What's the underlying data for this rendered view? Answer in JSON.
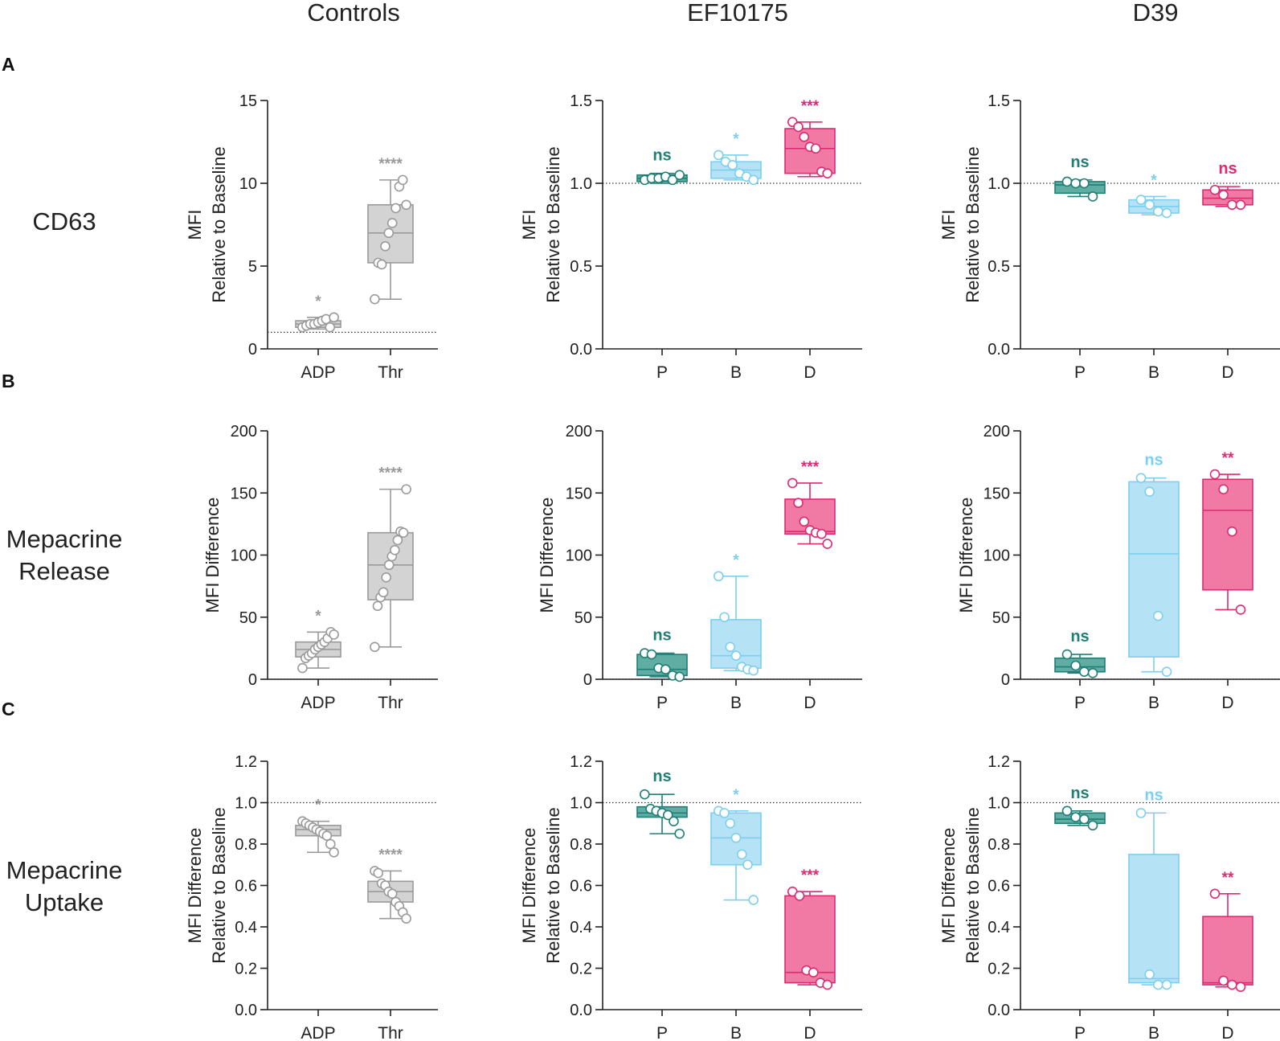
{
  "column_headers": [
    "Controls",
    "EF10175",
    "D39"
  ],
  "row_labels": [
    {
      "letter": "A",
      "lines": [
        "CD63"
      ]
    },
    {
      "letter": "B",
      "lines": [
        "Mepacrine",
        "Release"
      ]
    },
    {
      "letter": "C",
      "lines": [
        "Mepacrine",
        "Uptake"
      ]
    }
  ],
  "colors": {
    "grey_fill": "#d3d3d3",
    "grey_line": "#9a9a9a",
    "teal_fill": "#5fada3",
    "teal_line": "#1f7f75",
    "blue_fill": "#b6e2f6",
    "blue_line": "#7ccfee",
    "pink_fill": "#f07aa3",
    "pink_line": "#dd2a74"
  },
  "chart_data": [
    {
      "type": "box",
      "row": "A",
      "column": "Controls",
      "ylabel": [
        "MFI",
        "Relative to Baseline"
      ],
      "ylim": [
        0,
        15
      ],
      "yticks": [
        0,
        5,
        10,
        15
      ],
      "reference_line": 1,
      "categories": [
        "ADP",
        "Thr"
      ],
      "boxes": [
        {
          "category": "ADP",
          "color": "grey",
          "min": 1.2,
          "q1": 1.3,
          "median": 1.5,
          "q3": 1.7,
          "max": 1.9,
          "points": [
            1.3,
            1.4,
            1.5,
            1.5,
            1.6,
            1.7,
            1.8,
            1.3,
            1.9
          ],
          "significance": "*"
        },
        {
          "category": "Thr",
          "color": "grey",
          "min": 3.0,
          "q1": 5.2,
          "median": 7.0,
          "q3": 8.7,
          "max": 10.2,
          "points": [
            3.0,
            5.2,
            5.1,
            6.2,
            7.0,
            7.6,
            8.5,
            9.8,
            10.2,
            8.7
          ],
          "significance": "****"
        }
      ]
    },
    {
      "type": "box",
      "row": "A",
      "column": "EF10175",
      "ylabel": [
        "MFI",
        "Relative to Baseline"
      ],
      "ylim": [
        0,
        1.5
      ],
      "yticks": [
        "0.0",
        "0.5",
        "1.0",
        "1.5"
      ],
      "reference_line": 1,
      "categories": [
        "P",
        "B",
        "D"
      ],
      "boxes": [
        {
          "category": "P",
          "color": "teal",
          "min": 1.0,
          "q1": 1.01,
          "median": 1.03,
          "q3": 1.05,
          "max": 1.06,
          "points": [
            1.02,
            1.03,
            1.03,
            1.04,
            1.02,
            1.05
          ],
          "significance": "ns"
        },
        {
          "category": "B",
          "color": "blue",
          "min": 1.02,
          "q1": 1.03,
          "median": 1.08,
          "q3": 1.13,
          "max": 1.17,
          "points": [
            1.17,
            1.13,
            1.11,
            1.06,
            1.04,
            1.02
          ],
          "significance": "*"
        },
        {
          "category": "D",
          "color": "pink",
          "min": 1.04,
          "q1": 1.06,
          "median": 1.21,
          "q3": 1.33,
          "max": 1.37,
          "points": [
            1.37,
            1.34,
            1.28,
            1.22,
            1.21,
            1.07,
            1.06
          ],
          "significance": "***"
        }
      ]
    },
    {
      "type": "box",
      "row": "A",
      "column": "D39",
      "ylabel": [
        "MFI",
        "Relative to Baseline"
      ],
      "ylim": [
        0,
        1.5
      ],
      "yticks": [
        "0.0",
        "0.5",
        "1.0",
        "1.5"
      ],
      "reference_line": 1,
      "categories": [
        "P",
        "B",
        "D"
      ],
      "boxes": [
        {
          "category": "P",
          "color": "teal",
          "min": 0.92,
          "q1": 0.94,
          "median": 0.99,
          "q3": 1.01,
          "max": 1.02,
          "points": [
            1.01,
            1.0,
            1.0,
            0.92
          ],
          "significance": "ns"
        },
        {
          "category": "B",
          "color": "blue",
          "min": 0.81,
          "q1": 0.82,
          "median": 0.86,
          "q3": 0.9,
          "max": 0.92,
          "points": [
            0.9,
            0.87,
            0.83,
            0.82
          ],
          "significance": "*"
        },
        {
          "category": "D",
          "color": "pink",
          "min": 0.86,
          "q1": 0.87,
          "median": 0.91,
          "q3": 0.96,
          "max": 0.98,
          "points": [
            0.96,
            0.93,
            0.87,
            0.87
          ],
          "significance": "ns"
        }
      ]
    },
    {
      "type": "box",
      "row": "B",
      "column": "Controls",
      "ylabel": [
        "MFI Difference"
      ],
      "ylim": [
        0,
        200
      ],
      "yticks": [
        0,
        50,
        100,
        150,
        200
      ],
      "reference_line": 0,
      "categories": [
        "ADP",
        "Thr"
      ],
      "boxes": [
        {
          "category": "ADP",
          "color": "grey",
          "min": 9,
          "q1": 18,
          "median": 24,
          "q3": 30,
          "max": 38,
          "points": [
            9,
            17,
            19,
            21,
            24,
            26,
            28,
            30,
            33,
            38,
            36
          ],
          "significance": "*"
        },
        {
          "category": "Thr",
          "color": "grey",
          "min": 26,
          "q1": 64,
          "median": 92,
          "q3": 118,
          "max": 153,
          "points": [
            26,
            59,
            66,
            70,
            82,
            92,
            99,
            104,
            112,
            119,
            118,
            153
          ],
          "significance": "****"
        }
      ]
    },
    {
      "type": "box",
      "row": "B",
      "column": "EF10175",
      "ylabel": [
        "MFI Difference"
      ],
      "ylim": [
        0,
        200
      ],
      "yticks": [
        0,
        50,
        100,
        150,
        200
      ],
      "reference_line": 0,
      "categories": [
        "P",
        "B",
        "D"
      ],
      "boxes": [
        {
          "category": "P",
          "color": "teal",
          "min": 2,
          "q1": 3,
          "median": 8,
          "q3": 20,
          "max": 21,
          "points": [
            21,
            20,
            9,
            8,
            3,
            2
          ],
          "significance": "ns"
        },
        {
          "category": "B",
          "color": "blue",
          "min": 7,
          "q1": 9,
          "median": 19,
          "q3": 48,
          "max": 83,
          "points": [
            83,
            50,
            26,
            19,
            10,
            8,
            7
          ],
          "significance": "*"
        },
        {
          "category": "D",
          "color": "pink",
          "min": 109,
          "q1": 117,
          "median": 119,
          "q3": 145,
          "max": 158,
          "points": [
            158,
            142,
            127,
            120,
            118,
            117,
            109
          ],
          "significance": "***"
        }
      ]
    },
    {
      "type": "box",
      "row": "B",
      "column": "D39",
      "ylabel": [
        "MFI Difference"
      ],
      "ylim": [
        0,
        200
      ],
      "yticks": [
        0,
        50,
        100,
        150,
        200
      ],
      "reference_line": 0,
      "categories": [
        "P",
        "B",
        "D"
      ],
      "boxes": [
        {
          "category": "P",
          "color": "teal",
          "min": 5,
          "q1": 6,
          "median": 10,
          "q3": 17,
          "max": 20,
          "points": [
            20,
            11,
            6,
            5
          ],
          "significance": "ns"
        },
        {
          "category": "B",
          "color": "blue",
          "min": 6,
          "q1": 18,
          "median": 101,
          "q3": 159,
          "max": 162,
          "points": [
            162,
            151,
            51,
            6
          ],
          "significance": "ns"
        },
        {
          "category": "D",
          "color": "pink",
          "min": 56,
          "q1": 72,
          "median": 136,
          "q3": 161,
          "max": 165,
          "points": [
            165,
            153,
            119,
            56
          ],
          "significance": "**"
        }
      ]
    },
    {
      "type": "box",
      "row": "C",
      "column": "Controls",
      "ylabel": [
        "MFI Difference",
        "Relative to Baseline"
      ],
      "ylim": [
        0,
        1.2
      ],
      "yticks": [
        "0.0",
        "0.2",
        "0.4",
        "0.6",
        "0.8",
        "1.0",
        "1.2"
      ],
      "reference_line": 1,
      "categories": [
        "ADP",
        "Thr"
      ],
      "boxes": [
        {
          "category": "ADP",
          "color": "grey",
          "min": 0.76,
          "q1": 0.84,
          "median": 0.87,
          "q3": 0.89,
          "max": 0.91,
          "points": [
            0.91,
            0.9,
            0.89,
            0.88,
            0.87,
            0.86,
            0.85,
            0.84,
            0.8,
            0.76
          ],
          "significance": "*"
        },
        {
          "category": "Thr",
          "color": "grey",
          "min": 0.44,
          "q1": 0.52,
          "median": 0.57,
          "q3": 0.62,
          "max": 0.67,
          "points": [
            0.67,
            0.66,
            0.61,
            0.6,
            0.57,
            0.56,
            0.52,
            0.5,
            0.47,
            0.44
          ],
          "significance": "****"
        }
      ]
    },
    {
      "type": "box",
      "row": "C",
      "column": "EF10175",
      "ylabel": [
        "MFI Difference",
        "Relative to Baseline"
      ],
      "ylim": [
        0,
        1.2
      ],
      "yticks": [
        "0.0",
        "0.2",
        "0.4",
        "0.6",
        "0.8",
        "1.0",
        "1.2"
      ],
      "reference_line": 1,
      "categories": [
        "P",
        "B",
        "D"
      ],
      "boxes": [
        {
          "category": "P",
          "color": "teal",
          "min": 0.85,
          "q1": 0.93,
          "median": 0.95,
          "q3": 0.98,
          "max": 1.04,
          "points": [
            1.04,
            0.97,
            0.96,
            0.95,
            0.94,
            0.91,
            0.85
          ],
          "significance": "ns"
        },
        {
          "category": "B",
          "color": "blue",
          "min": 0.53,
          "q1": 0.7,
          "median": 0.83,
          "q3": 0.95,
          "max": 0.96,
          "points": [
            0.96,
            0.95,
            0.9,
            0.83,
            0.75,
            0.7,
            0.53
          ],
          "significance": "*"
        },
        {
          "category": "D",
          "color": "pink",
          "min": 0.12,
          "q1": 0.13,
          "median": 0.18,
          "q3": 0.55,
          "max": 0.57,
          "points": [
            0.57,
            0.55,
            0.19,
            0.18,
            0.13,
            0.12
          ],
          "significance": "***"
        }
      ]
    },
    {
      "type": "box",
      "row": "C",
      "column": "D39",
      "ylabel": [
        "MFI Difference",
        "Relative to Baseline"
      ],
      "ylim": [
        0,
        1.2
      ],
      "yticks": [
        "0.0",
        "0.2",
        "0.4",
        "0.6",
        "0.8",
        "1.0",
        "1.2"
      ],
      "reference_line": 1,
      "categories": [
        "P",
        "B",
        "D"
      ],
      "boxes": [
        {
          "category": "P",
          "color": "teal",
          "min": 0.89,
          "q1": 0.9,
          "median": 0.92,
          "q3": 0.95,
          "max": 0.96,
          "points": [
            0.96,
            0.93,
            0.92,
            0.89
          ],
          "significance": "ns"
        },
        {
          "category": "B",
          "color": "blue",
          "min": 0.12,
          "q1": 0.13,
          "median": 0.15,
          "q3": 0.75,
          "max": 0.95,
          "points": [
            0.95,
            0.17,
            0.12,
            0.12
          ],
          "significance": "ns"
        },
        {
          "category": "D",
          "color": "pink",
          "min": 0.11,
          "q1": 0.12,
          "median": 0.13,
          "q3": 0.45,
          "max": 0.56,
          "points": [
            0.56,
            0.14,
            0.12,
            0.11
          ],
          "significance": "**"
        }
      ]
    }
  ]
}
